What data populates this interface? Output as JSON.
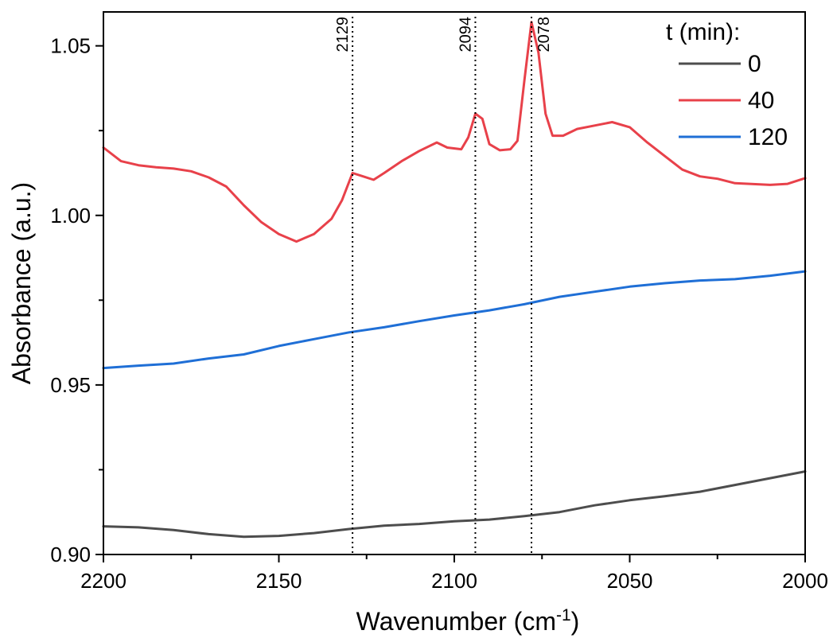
{
  "chart_data": {
    "type": "line",
    "xlabel": "Wavenumber (cm",
    "xlabel_sup": "-1",
    "xlabel_close": ")",
    "ylabel": "Absorbance (a.u.)",
    "xlim": [
      2200,
      2000
    ],
    "ylim": [
      0.9,
      1.06
    ],
    "x_ticks": [
      2200,
      2150,
      2100,
      2050,
      2000
    ],
    "x_tick_labels": [
      "2200",
      "2150",
      "2100",
      "2050",
      "2000"
    ],
    "y_ticks": [
      0.9,
      0.95,
      1.0,
      1.05
    ],
    "y_tick_labels": [
      "0.90",
      "0.95",
      "1.00",
      "1.05"
    ],
    "legend": {
      "title": "t (min):",
      "position": "top-right"
    },
    "series": [
      {
        "name": "0",
        "color": "#4d4d4d",
        "points": [
          [
            2200,
            0.9083
          ],
          [
            2190,
            0.908
          ],
          [
            2180,
            0.9072
          ],
          [
            2170,
            0.906
          ],
          [
            2160,
            0.9052
          ],
          [
            2150,
            0.9055
          ],
          [
            2140,
            0.9063
          ],
          [
            2130,
            0.9075
          ],
          [
            2120,
            0.9085
          ],
          [
            2110,
            0.909
          ],
          [
            2100,
            0.9098
          ],
          [
            2090,
            0.9103
          ],
          [
            2080,
            0.9113
          ],
          [
            2070,
            0.9125
          ],
          [
            2060,
            0.9145
          ],
          [
            2050,
            0.916
          ],
          [
            2040,
            0.9172
          ],
          [
            2030,
            0.9185
          ],
          [
            2020,
            0.9205
          ],
          [
            2010,
            0.9225
          ],
          [
            2000,
            0.9245
          ]
        ]
      },
      {
        "name": "40",
        "color": "#e8414a",
        "points": [
          [
            2200,
            1.02
          ],
          [
            2195,
            1.016
          ],
          [
            2190,
            1.0148
          ],
          [
            2185,
            1.0142
          ],
          [
            2180,
            1.0138
          ],
          [
            2175,
            1.013
          ],
          [
            2170,
            1.0112
          ],
          [
            2165,
            1.0085
          ],
          [
            2160,
            1.003
          ],
          [
            2155,
            0.998
          ],
          [
            2150,
            0.9945
          ],
          [
            2145,
            0.9923
          ],
          [
            2140,
            0.9945
          ],
          [
            2135,
            0.999
          ],
          [
            2132,
            1.0045
          ],
          [
            2129,
            1.0125
          ],
          [
            2126,
            1.0115
          ],
          [
            2123,
            1.0105
          ],
          [
            2120,
            1.0125
          ],
          [
            2115,
            1.016
          ],
          [
            2110,
            1.019
          ],
          [
            2105,
            1.0215
          ],
          [
            2102,
            1.02
          ],
          [
            2098,
            1.0195
          ],
          [
            2096,
            1.023
          ],
          [
            2094,
            1.03
          ],
          [
            2092,
            1.0285
          ],
          [
            2090,
            1.021
          ],
          [
            2087,
            1.0192
          ],
          [
            2084,
            1.0195
          ],
          [
            2082,
            1.022
          ],
          [
            2080,
            1.04
          ],
          [
            2078,
            1.057
          ],
          [
            2076,
            1.048
          ],
          [
            2074,
            1.03
          ],
          [
            2072,
            1.0235
          ],
          [
            2069,
            1.0235
          ],
          [
            2065,
            1.0255
          ],
          [
            2060,
            1.0265
          ],
          [
            2055,
            1.0275
          ],
          [
            2050,
            1.026
          ],
          [
            2045,
            1.0215
          ],
          [
            2040,
            1.0175
          ],
          [
            2035,
            1.0135
          ],
          [
            2030,
            1.0115
          ],
          [
            2025,
            1.0108
          ],
          [
            2020,
            1.0095
          ],
          [
            2010,
            1.009
          ],
          [
            2005,
            1.0093
          ],
          [
            2000,
            1.011
          ]
        ]
      },
      {
        "name": "120",
        "color": "#1f6fd6",
        "points": [
          [
            2200,
            0.955
          ],
          [
            2190,
            0.9557
          ],
          [
            2180,
            0.9563
          ],
          [
            2170,
            0.9578
          ],
          [
            2160,
            0.959
          ],
          [
            2150,
            0.9615
          ],
          [
            2140,
            0.9635
          ],
          [
            2130,
            0.9655
          ],
          [
            2120,
            0.967
          ],
          [
            2110,
            0.9688
          ],
          [
            2100,
            0.9705
          ],
          [
            2090,
            0.972
          ],
          [
            2080,
            0.9738
          ],
          [
            2070,
            0.976
          ],
          [
            2060,
            0.9775
          ],
          [
            2050,
            0.979
          ],
          [
            2040,
            0.98
          ],
          [
            2030,
            0.9808
          ],
          [
            2020,
            0.9812
          ],
          [
            2010,
            0.9822
          ],
          [
            2000,
            0.9835
          ]
        ]
      }
    ],
    "annotations": [
      {
        "x": 2129,
        "label": "2129"
      },
      {
        "x": 2094,
        "label": "2094"
      },
      {
        "x": 2078,
        "label": "2078"
      }
    ]
  }
}
